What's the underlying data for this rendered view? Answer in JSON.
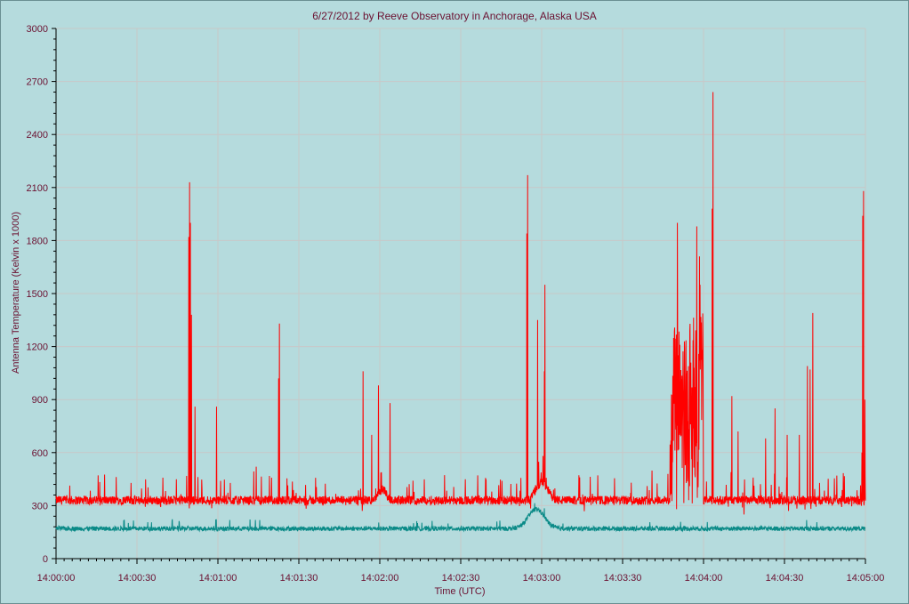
{
  "chart_data": {
    "type": "line",
    "title": "6/27/2012  by  Reeve Observatory  in  Anchorage, Alaska  USA",
    "xlabel": "Time (UTC)",
    "ylabel": "Antenna Temperature (Kelvin x 1000)",
    "ylim": [
      0,
      3000
    ],
    "xlim_seconds": [
      0,
      300
    ],
    "grid": true,
    "x_tick_labels": [
      "14:00:00",
      "14:00:30",
      "14:01:00",
      "14:01:30",
      "14:02:00",
      "14:02:30",
      "14:03:00",
      "14:03:30",
      "14:04:00",
      "14:04:30",
      "14:05:00"
    ],
    "y_tick_labels": [
      "0",
      "300",
      "600",
      "900",
      "1200",
      "1500",
      "1800",
      "2100",
      "2400",
      "2700",
      "3000"
    ],
    "series": [
      {
        "color": "#ff0000",
        "baseline": 330,
        "spikes": [
          {
            "t": 49.5,
            "v": 2130
          },
          {
            "t": 49.8,
            "v": 1900
          },
          {
            "t": 49.2,
            "v": 1820
          },
          {
            "t": 50.2,
            "v": 1380
          },
          {
            "t": 51.5,
            "v": 860
          },
          {
            "t": 59.5,
            "v": 860
          },
          {
            "t": 74.2,
            "v": 520
          },
          {
            "t": 82.8,
            "v": 1330
          },
          {
            "t": 82.5,
            "v": 1020
          },
          {
            "t": 113.8,
            "v": 1060
          },
          {
            "t": 117.0,
            "v": 700
          },
          {
            "t": 119.5,
            "v": 980
          },
          {
            "t": 123.8,
            "v": 880
          },
          {
            "t": 174.8,
            "v": 2170
          },
          {
            "t": 174.5,
            "v": 1840
          },
          {
            "t": 178.5,
            "v": 1350
          },
          {
            "t": 181.2,
            "v": 1550
          },
          {
            "t": 181.0,
            "v": 1060
          },
          {
            "t": 230.3,
            "v": 1900
          },
          {
            "t": 237.5,
            "v": 1880
          },
          {
            "t": 238.5,
            "v": 1710
          },
          {
            "t": 238.7,
            "v": 1550
          },
          {
            "t": 243.5,
            "v": 2640
          },
          {
            "t": 243.2,
            "v": 1980
          },
          {
            "t": 250.5,
            "v": 920
          },
          {
            "t": 252.8,
            "v": 720
          },
          {
            "t": 263.0,
            "v": 680
          },
          {
            "t": 266.5,
            "v": 850
          },
          {
            "t": 271.0,
            "v": 700
          },
          {
            "t": 275.5,
            "v": 700
          },
          {
            "t": 278.5,
            "v": 1090
          },
          {
            "t": 279.5,
            "v": 1070
          },
          {
            "t": 280.5,
            "v": 1390
          },
          {
            "t": 299.0,
            "v": 1940
          },
          {
            "t": 299.3,
            "v": 2080
          },
          {
            "t": 299.8,
            "v": 900
          },
          {
            "t": 298.7,
            "v": 600
          }
        ],
        "dips": [
          {
            "t": 113.5,
            "v": 270
          },
          {
            "t": 230.0,
            "v": 280
          },
          {
            "t": 255.0,
            "v": 250
          },
          {
            "t": 271.5,
            "v": 270
          }
        ]
      },
      {
        "color": "#0a8a87",
        "baseline": 170,
        "bumps": [
          {
            "t": 177.5,
            "v": 300
          },
          {
            "t": 175.0,
            "v": 250
          }
        ]
      }
    ]
  }
}
